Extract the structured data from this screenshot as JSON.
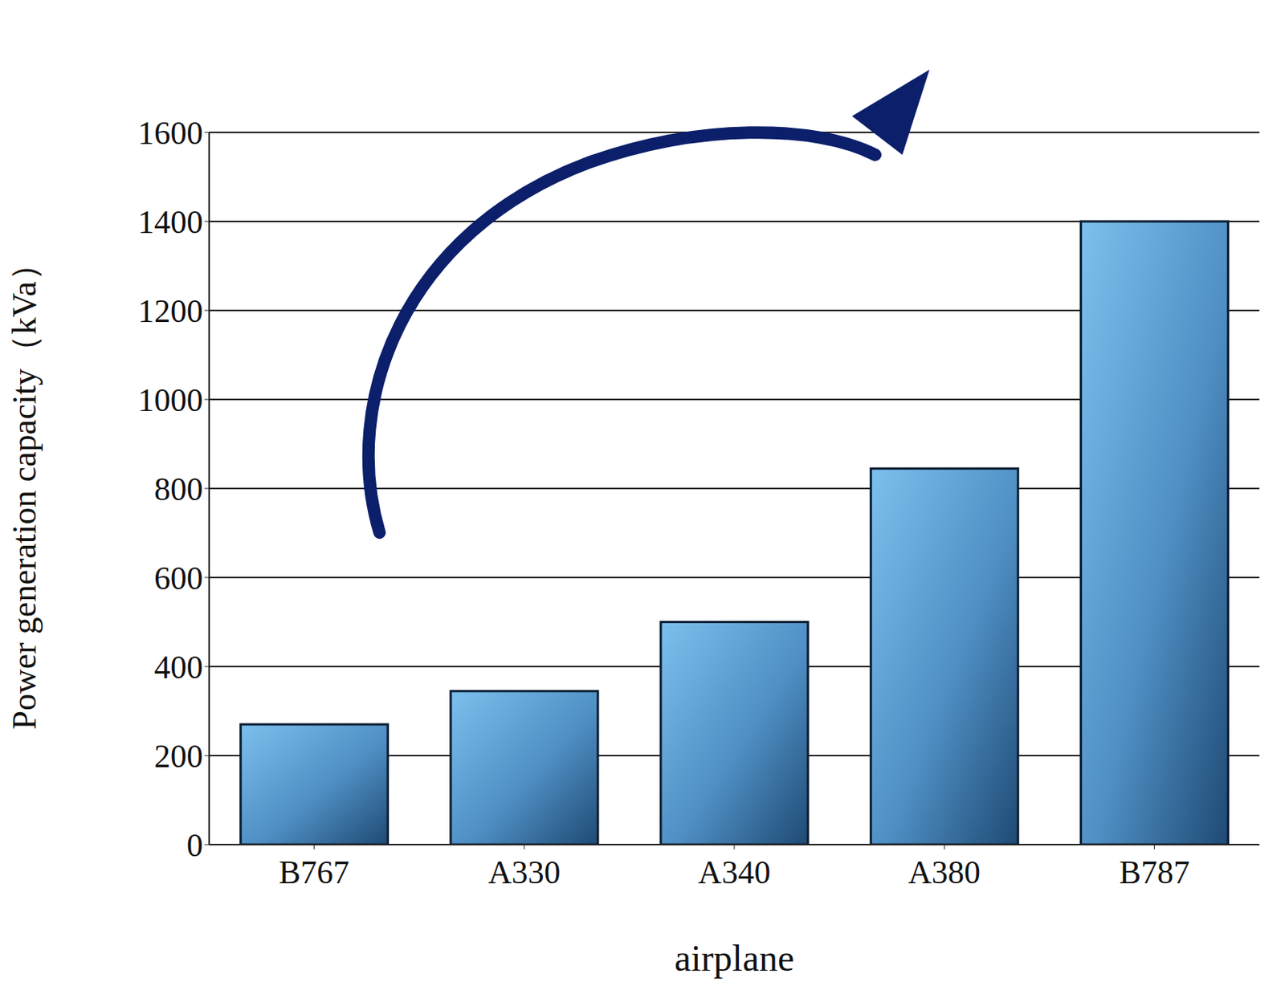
{
  "chart_data": {
    "type": "bar",
    "x_label": "airplane",
    "y_label": "Power generation capacity（kVa）",
    "categories": [
      "B767",
      "A330",
      "A340",
      "A380",
      "B787"
    ],
    "values": [
      270,
      345,
      500,
      845,
      1400
    ],
    "color": "#7cc0ee",
    "ylim": [
      0,
      1600
    ],
    "yticks": [
      0,
      200,
      400,
      600,
      800,
      1000,
      1200,
      1400,
      1600
    ],
    "grid": true
  }
}
